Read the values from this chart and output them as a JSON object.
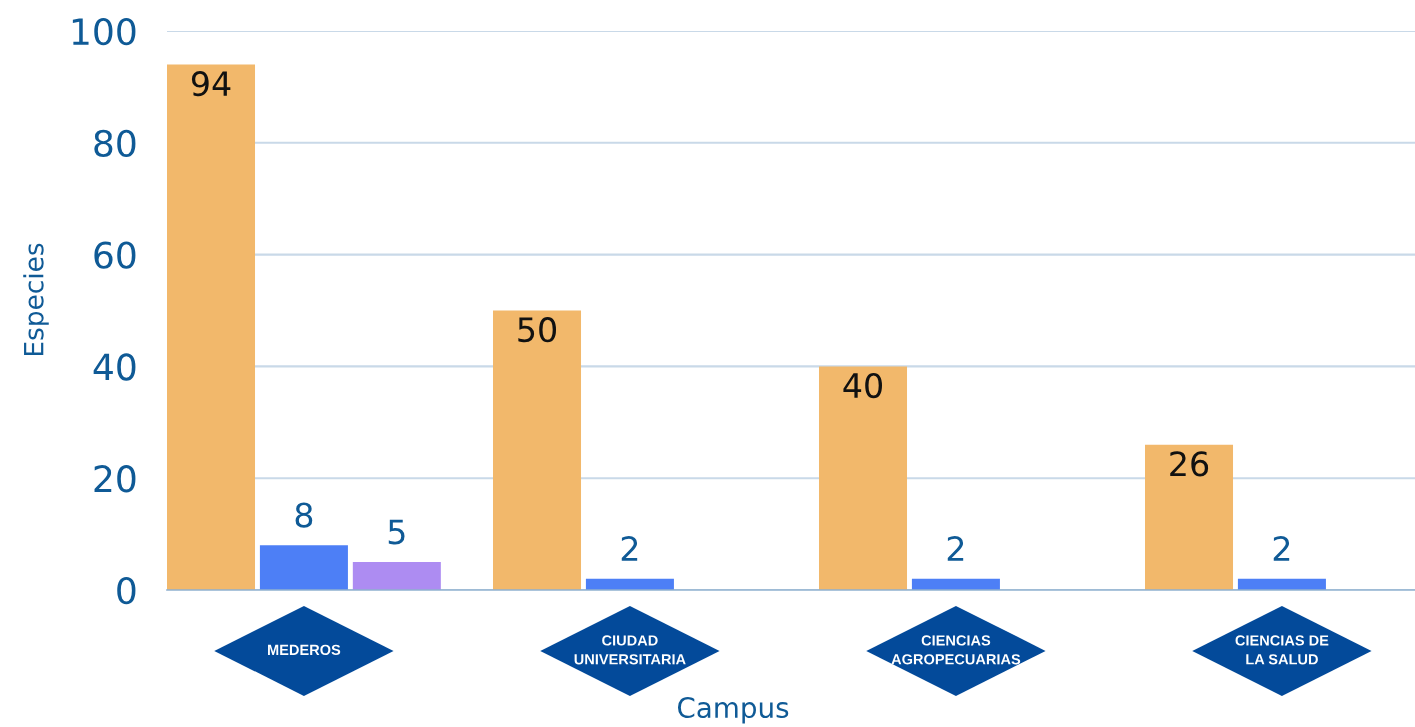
{
  "chart_data": {
    "type": "bar",
    "xlabel": "Campus",
    "ylabel": "Especies",
    "categories": [
      "MEDEROS",
      "CIUDAD\nUNIVERSITARIA",
      "CIENCIAS\nAGROPECUARIAS",
      "CIENCIAS DE\nLA SALUD"
    ],
    "series": [
      {
        "color": "#f2b86b",
        "values": [
          94,
          50,
          40,
          26
        ]
      },
      {
        "color": "#4d7ff6",
        "values": [
          8,
          2,
          2,
          2
        ]
      },
      {
        "color": "#ad8cf2",
        "values": [
          5,
          null,
          null,
          null
        ]
      }
    ],
    "ylim": [
      0,
      100
    ],
    "yticks": [
      0,
      20,
      40,
      60,
      80,
      100
    ],
    "grid": "y",
    "data_labels": true
  }
}
